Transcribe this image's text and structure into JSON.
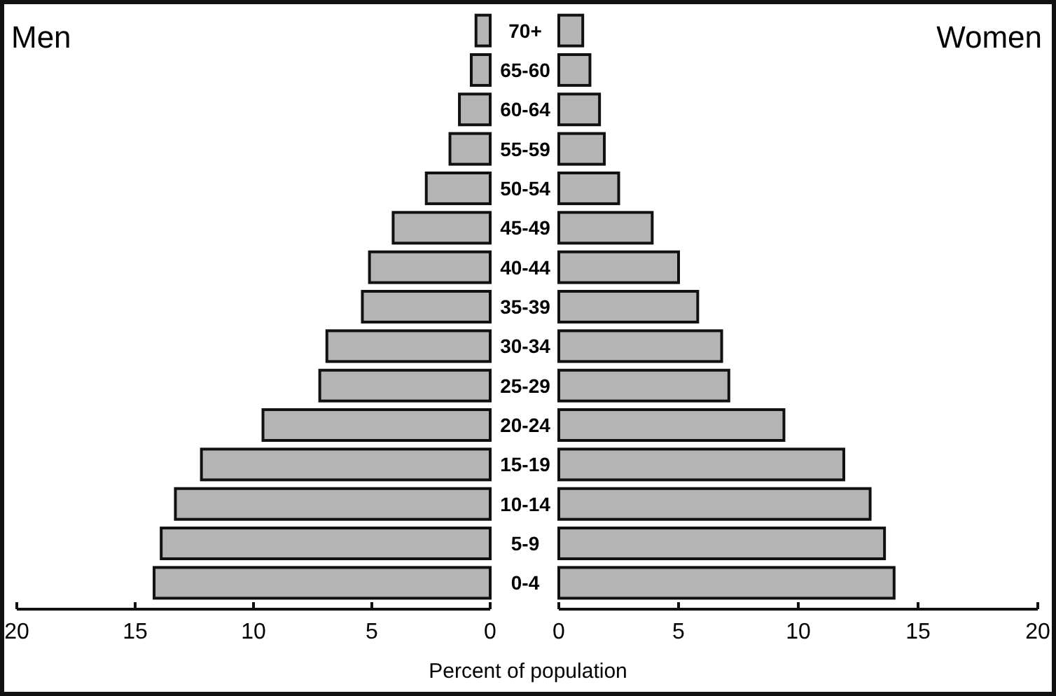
{
  "chart_data": [
    {
      "type": "bar",
      "orientation": "horizontal",
      "title": "Men",
      "xlabel": "Percent of population",
      "categories": [
        "70+",
        "65-60",
        "60-64",
        "55-59",
        "50-54",
        "45-49",
        "40-44",
        "35-39",
        "30-34",
        "25-29",
        "20-24",
        "15-19",
        "10-14",
        "5-9",
        "0-4"
      ],
      "values": [
        0.6,
        0.8,
        1.3,
        1.7,
        2.7,
        4.1,
        5.1,
        5.4,
        6.9,
        7.2,
        9.6,
        12.2,
        13.3,
        13.9,
        14.2
      ],
      "color": "#b4b4b4",
      "xlim": [
        20,
        0
      ],
      "xticks": [
        20,
        15,
        10,
        5,
        0
      ]
    },
    {
      "type": "bar",
      "orientation": "horizontal",
      "title": "Women",
      "categories": [
        "70+",
        "65-60",
        "60-64",
        "55-59",
        "50-54",
        "45-49",
        "40-44",
        "35-39",
        "30-34",
        "25-29",
        "20-24",
        "15-19",
        "10-14",
        "5-9",
        "0-4"
      ],
      "values": [
        1.0,
        1.3,
        1.7,
        1.9,
        2.5,
        3.9,
        5.0,
        5.8,
        6.8,
        7.1,
        9.4,
        11.9,
        13.0,
        13.6,
        14.0
      ],
      "color": "#b4b4b4",
      "xlim": [
        0,
        20
      ],
      "xticks": [
        0,
        5,
        10,
        15,
        20
      ],
      "tick_labels": "x"
    }
  ]
}
